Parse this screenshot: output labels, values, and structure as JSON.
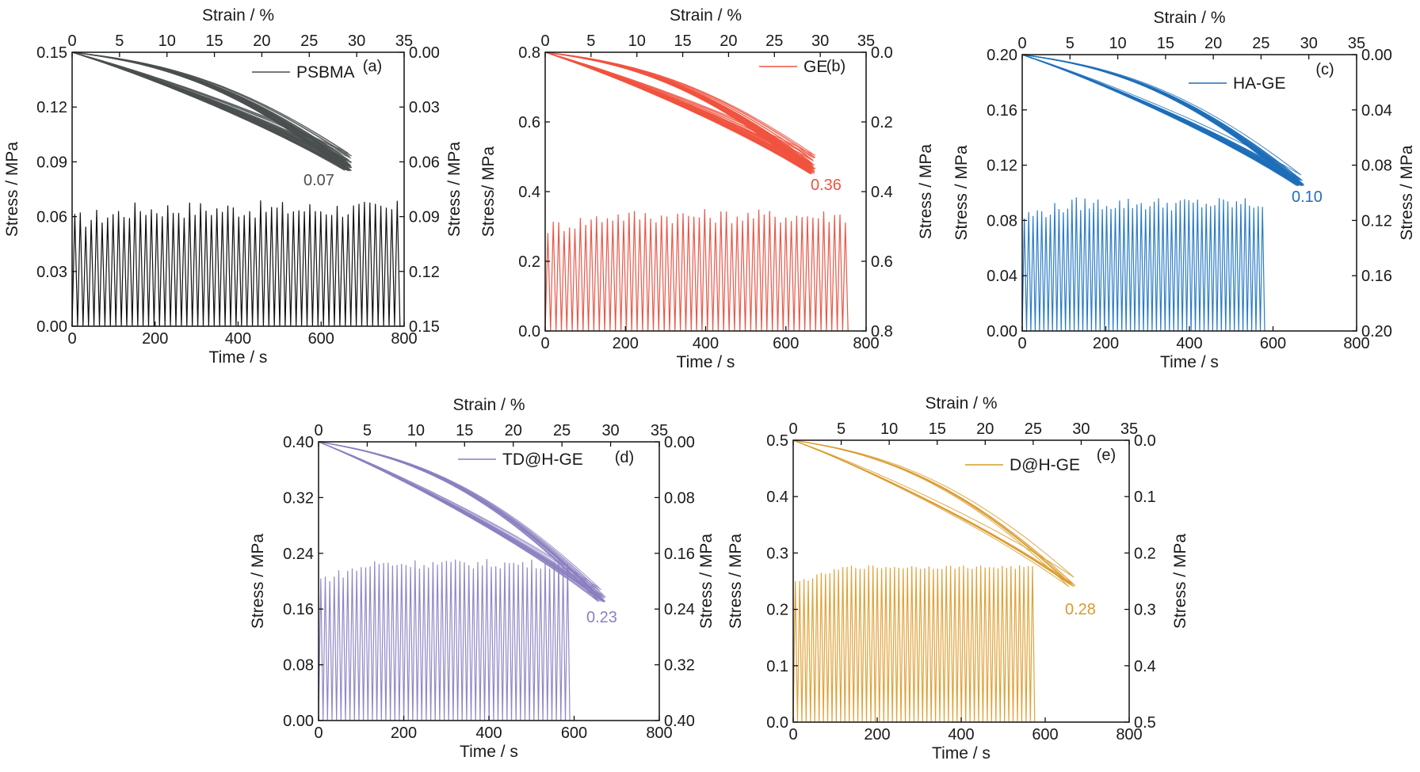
{
  "chart_data": [
    {
      "type": "line",
      "panel_label": "(a)",
      "legend": "PSBMA",
      "color": "#4a4f4f",
      "cycle_color": "#111111",
      "annotation": "0.07",
      "xlabel_bottom": "Time / s",
      "xlabel_top": "Strain / %",
      "ylabel_left": "Stress / MPa",
      "ylabel_right": "Stress / MPa",
      "x_ticks": [
        "0",
        "200",
        "400",
        "600",
        "800"
      ],
      "top_ticks": [
        "0",
        "5",
        "10",
        "15",
        "20",
        "25",
        "30",
        "35"
      ],
      "y_ticks": [
        "0.00",
        "0.03",
        "0.06",
        "0.09",
        "0.12",
        "0.15"
      ],
      "y2_ticks": [
        "0.15",
        "0.12",
        "0.09",
        "0.06",
        "0.03",
        "0.00"
      ],
      "xlim": [
        0,
        800
      ],
      "strain_lim": [
        0,
        35
      ],
      "ylim": [
        0,
        0.15
      ],
      "cycles": {
        "count": 60,
        "t_end": 790,
        "peak": 0.064,
        "peak_max": 0.071
      },
      "hysteresis": {
        "max_strain": 29.5,
        "stress_max": 0.15,
        "stress_min": 0.085,
        "loops": 40,
        "spread": 0.012
      }
    },
    {
      "type": "line",
      "panel_label": "(b)",
      "legend": "GE",
      "color": "#f0533f",
      "cycle_color": "#e8584a",
      "annotation": "0.36",
      "xlabel_bottom": "Time / s",
      "xlabel_top": "Strain / %",
      "ylabel_left": "Stress/ MPa",
      "ylabel_right": "Stress / MPa",
      "x_ticks": [
        "0",
        "200",
        "400",
        "600",
        "800"
      ],
      "top_ticks": [
        "0",
        "5",
        "10",
        "15",
        "20",
        "25",
        "30",
        "35"
      ],
      "y_ticks": [
        "0.0",
        "0.2",
        "0.4",
        "0.6",
        "0.8"
      ],
      "y2_ticks": [
        "0.8",
        "0.6",
        "0.4",
        "0.2",
        "0.0"
      ],
      "xlim": [
        0,
        800
      ],
      "strain_lim": [
        0,
        35
      ],
      "ylim": [
        0,
        0.8
      ],
      "cycles": {
        "count": 56,
        "t_end": 755,
        "peak": 0.33,
        "peak_max": 0.36
      },
      "hysteresis": {
        "max_strain": 29.5,
        "stress_max": 0.8,
        "stress_min": 0.45,
        "loops": 40,
        "spread": 0.07
      }
    },
    {
      "type": "line",
      "panel_label": "(c)",
      "legend": "HA-GE",
      "color": "#1f6fb8",
      "cycle_color": "#2d7cc6",
      "annotation": "0.10",
      "xlabel_bottom": "Time / s",
      "xlabel_top": "Strain / %",
      "ylabel_left": "Stress / MPa",
      "ylabel_right": "Stress / MPa",
      "x_ticks": [
        "0",
        "200",
        "400",
        "600",
        "800"
      ],
      "top_ticks": [
        "0",
        "5",
        "10",
        "15",
        "20",
        "25",
        "30",
        "35"
      ],
      "y_ticks": [
        "0.00",
        "0.04",
        "0.08",
        "0.12",
        "0.16",
        "0.20"
      ],
      "y2_ticks": [
        "0.20",
        "0.16",
        "0.12",
        "0.08",
        "0.04",
        "0.00"
      ],
      "xlim": [
        0,
        800
      ],
      "strain_lim": [
        0,
        35
      ],
      "ylim": [
        0,
        0.2
      ],
      "cycles": {
        "count": 56,
        "t_end": 580,
        "peak": 0.092,
        "peak_max": 0.099
      },
      "hysteresis": {
        "max_strain": 29.5,
        "stress_max": 0.2,
        "stress_min": 0.105,
        "loops": 40,
        "spread": 0.01
      }
    },
    {
      "type": "line",
      "panel_label": "(d)",
      "legend": "TD@H-GE",
      "color": "#8b7fc0",
      "cycle_color": "#9088c6",
      "annotation": "0.23",
      "xlabel_bottom": "Time / s",
      "xlabel_top": "Strain / %",
      "ylabel_left": "Stress / MPa",
      "ylabel_right": "Stress / MPa",
      "x_ticks": [
        "0",
        "200",
        "400",
        "600",
        "800"
      ],
      "top_ticks": [
        "0",
        "5",
        "10",
        "15",
        "20",
        "25",
        "30",
        "35"
      ],
      "y_ticks": [
        "0.00",
        "0.08",
        "0.16",
        "0.24",
        "0.32",
        "0.40"
      ],
      "y2_ticks": [
        "0.40",
        "0.32",
        "0.24",
        "0.16",
        "0.08",
        "0.00"
      ],
      "xlim": [
        0,
        800
      ],
      "strain_lim": [
        0,
        35
      ],
      "ylim": [
        0,
        0.4
      ],
      "cycles": {
        "count": 56,
        "t_end": 590,
        "peak": 0.225,
        "peak_max": 0.235
      },
      "hysteresis": {
        "max_strain": 29.5,
        "stress_max": 0.4,
        "stress_min": 0.17,
        "loops": 20,
        "spread": 0.02
      }
    },
    {
      "type": "line",
      "panel_label": "(e)",
      "legend": "D@H-GE",
      "color": "#d99a2c",
      "cycle_color": "#e0a23a",
      "annotation": "0.28",
      "xlabel_bottom": "Time / s",
      "xlabel_top": "Strain / %",
      "ylabel_left": "Stress / MPa",
      "ylabel_right": "Stress / MPa",
      "x_ticks": [
        "0",
        "200",
        "400",
        "600",
        "800"
      ],
      "top_ticks": [
        "0",
        "5",
        "10",
        "15",
        "20",
        "25",
        "30",
        "35"
      ],
      "y_ticks": [
        "0.0",
        "0.1",
        "0.2",
        "0.3",
        "0.4",
        "0.5"
      ],
      "y2_ticks": [
        "0.5",
        "0.4",
        "0.3",
        "0.2",
        "0.1",
        "0.0"
      ],
      "xlim": [
        0,
        800
      ],
      "strain_lim": [
        0,
        35
      ],
      "ylim": [
        0,
        0.5
      ],
      "cycles": {
        "count": 56,
        "t_end": 575,
        "peak": 0.275,
        "peak_max": 0.28
      },
      "hysteresis": {
        "max_strain": 29.5,
        "stress_max": 0.5,
        "stress_min": 0.24,
        "loops": 8,
        "spread": 0.03
      }
    }
  ]
}
